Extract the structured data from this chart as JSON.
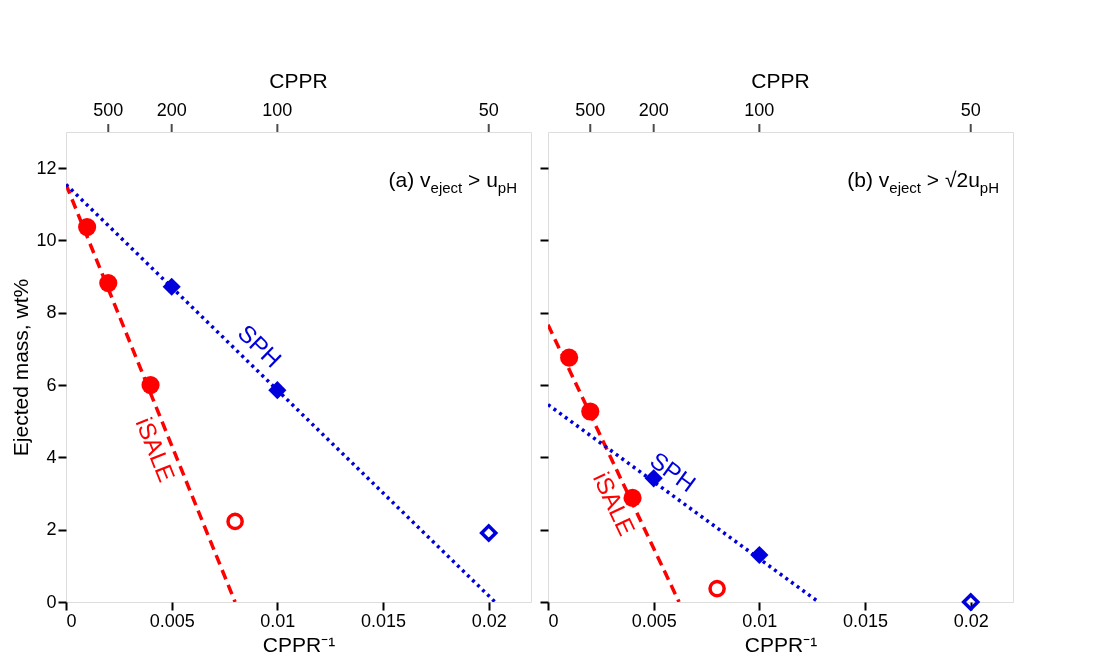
{
  "chart_data": [
    {
      "type": "scatter",
      "xlabel": "CPPR⁻¹",
      "ylabel": "Ejected mass, wt%",
      "x2label": "CPPR",
      "annotations": [
        "(a) v$_{eject}$ > u$_{pH}$",
        "500",
        "200",
        "100",
        "50"
      ],
      "xlim": [
        0,
        0.022
      ],
      "xticks": [
        0,
        0.005,
        0.01,
        0.015,
        0.02
      ],
      "ylim": [
        0,
        13
      ],
      "yticks": [
        0,
        2,
        4,
        6,
        8,
        10,
        12
      ],
      "grid": false,
      "legend": false,
      "series": [
        {
          "type": "line",
          "name": "iSALE",
          "color": "#ff0000",
          "line_style": "dashed",
          "x": [
            0,
            0.008
          ],
          "values": [
            11.55,
            0
          ]
        },
        {
          "type": "line",
          "name": "SPH",
          "color": "#0000dd",
          "line_style": "dotted",
          "x": [
            0,
            0.0203
          ],
          "values": [
            11.55,
            0
          ]
        },
        {
          "color": "#ff0000",
          "marker": "circle",
          "x": [
            0.001,
            0.002,
            0.004
          ],
          "values": [
            10.37,
            8.82,
            6.0
          ]
        },
        {
          "color": "#ff0000",
          "marker": "circle-open",
          "x": [
            0.008
          ],
          "values": [
            2.23
          ]
        },
        {
          "color": "#0000dd",
          "marker": "diamond",
          "x": [
            0.005,
            0.01
          ],
          "values": [
            8.72,
            5.86
          ]
        },
        {
          "color": "#0000dd",
          "marker": "diamond-open",
          "x": [
            0.02
          ],
          "values": [
            1.91
          ]
        }
      ]
    },
    {
      "type": "scatter",
      "xlabel": "CPPR⁻¹",
      "x2label": "CPPR",
      "tick_labels": "x",
      "annotations": [
        "(b) v$_{eject}$ > √2u$_{pH}$",
        "500",
        "200",
        "100",
        "50"
      ],
      "xlim": [
        0,
        0.022
      ],
      "xticks": [
        0,
        0.005,
        0.01,
        0.015,
        0.02
      ],
      "ylim": [
        0,
        13
      ],
      "yticks": [
        0,
        2,
        4,
        6,
        8,
        10,
        12
      ],
      "grid": false,
      "legend": false,
      "series": [
        {
          "type": "line",
          "name": "iSALE",
          "color": "#ff0000",
          "line_style": "dashed",
          "x": [
            0,
            0.0062
          ],
          "values": [
            7.67,
            0
          ]
        },
        {
          "type": "line",
          "name": "SPH",
          "color": "#0000dd",
          "line_style": "dotted",
          "x": [
            0,
            0.0128
          ],
          "values": [
            5.46,
            0
          ]
        },
        {
          "color": "#ff0000",
          "marker": "circle",
          "x": [
            0.001,
            0.002,
            0.004
          ],
          "values": [
            6.76,
            5.27,
            2.88
          ]
        },
        {
          "color": "#ff0000",
          "marker": "circle-open",
          "x": [
            0.008
          ],
          "values": [
            0.37
          ]
        },
        {
          "color": "#0000dd",
          "marker": "diamond",
          "x": [
            0.005,
            0.01
          ],
          "values": [
            3.42,
            1.3
          ]
        },
        {
          "color": "#0000dd",
          "marker": "diamond-open",
          "x": [
            0.02
          ],
          "values": [
            0.0
          ]
        }
      ]
    }
  ]
}
